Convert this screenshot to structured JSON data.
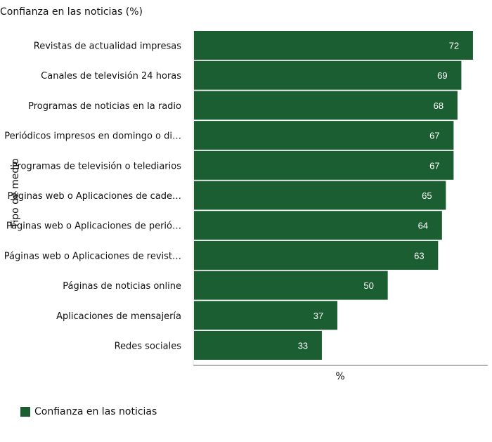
{
  "chart_data": {
    "type": "bar",
    "orientation": "horizontal",
    "title": "Confianza en las noticias (%)",
    "xlabel": "%",
    "ylabel": "Tipo de medio",
    "categories": [
      "Revistas de actualidad impresas",
      "Canales de televisión 24 horas",
      "Programas de noticias en la radio",
      "Periódicos impresos en domingo o di…",
      "Programas de televisión o telediarios",
      "Páginas web o Aplicaciones de cade…",
      "Páginas web o Aplicaciones de perió…",
      "Páginas web o Aplicaciones de revist…",
      "Páginas de noticias online",
      "Aplicaciones de mensajería",
      "Redes sociales"
    ],
    "series": [
      {
        "name": "Confianza en las noticias",
        "values": [
          72,
          69,
          68,
          67,
          67,
          65,
          64,
          63,
          50,
          37,
          33
        ]
      }
    ],
    "xlim": [
      0,
      76
    ],
    "grid": false,
    "legend": "bottom-left",
    "data_labels": true
  },
  "colors": {
    "bar": "#1b5e32",
    "label_on_bar": "#ffffff",
    "axis": "#666666"
  }
}
